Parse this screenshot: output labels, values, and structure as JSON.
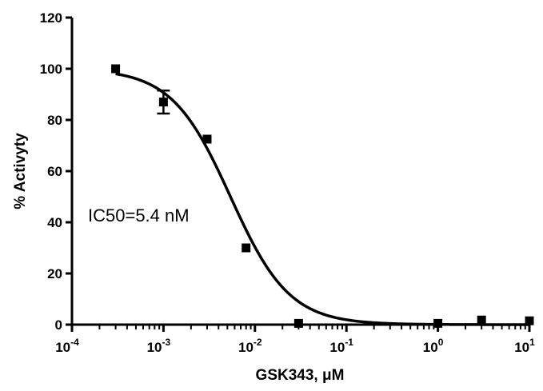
{
  "chart_data": {
    "type": "scatter",
    "xlabel": "GSK343, μM",
    "ylabel": "% Activyty",
    "x_scale": "log",
    "xlim": [
      0.0001,
      10
    ],
    "ylim": [
      0,
      120
    ],
    "x_ticks": [
      {
        "value": 0.0001,
        "base": "10",
        "exp": "-4"
      },
      {
        "value": 0.001,
        "base": "10",
        "exp": "-3"
      },
      {
        "value": 0.01,
        "base": "10",
        "exp": "-2"
      },
      {
        "value": 0.1,
        "base": "10",
        "exp": "-1"
      },
      {
        "value": 1,
        "base": "10",
        "exp": "0"
      },
      {
        "value": 10,
        "base": "10",
        "exp": "1"
      }
    ],
    "y_ticks": [
      0,
      20,
      40,
      60,
      80,
      100,
      120
    ],
    "grid": false,
    "legend": "none",
    "annotation": "IC50=5.4 nM",
    "points": [
      {
        "x": 0.0003,
        "y": 100
      },
      {
        "x": 0.001,
        "y": 87,
        "err": 4.5
      },
      {
        "x": 0.003,
        "y": 72.5
      },
      {
        "x": 0.008,
        "y": 30
      },
      {
        "x": 0.03,
        "y": 0.5
      },
      {
        "x": 1,
        "y": 0.5
      },
      {
        "x": 3,
        "y": 1.8
      },
      {
        "x": 10,
        "y": 1.5
      }
    ],
    "fit_curve": {
      "model": "sigmoidal dose-response",
      "top": 100,
      "bottom": 0,
      "ic50": 0.0054,
      "hill": 1.35
    }
  }
}
